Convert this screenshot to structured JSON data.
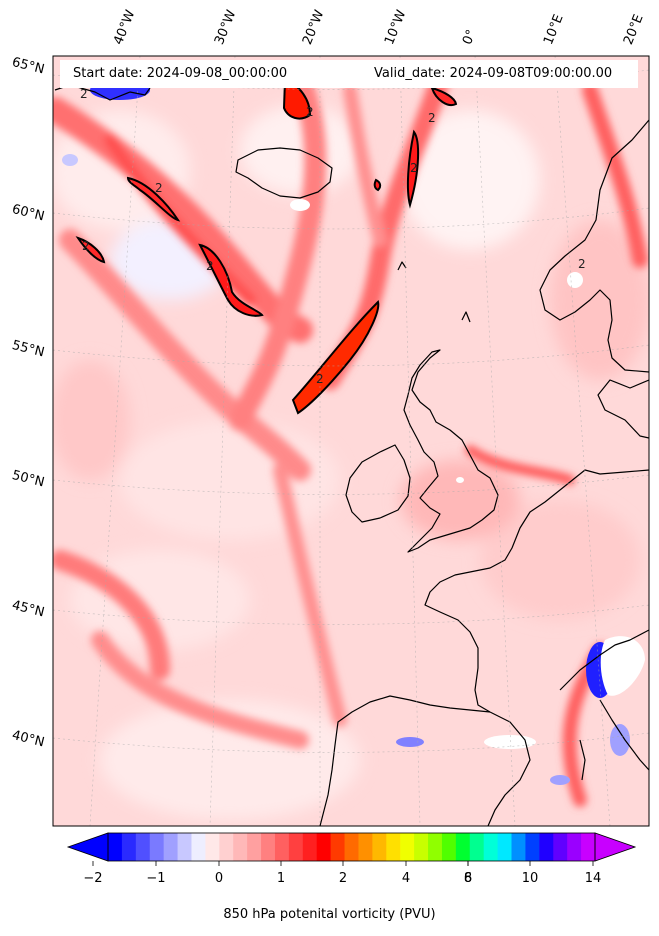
{
  "header": {
    "start_label": "Start date: 2024-09-08_00:00:00",
    "valid_label": "Valid_date: 2024-09-08T09:00:00.00"
  },
  "axes": {
    "lon_labels": [
      "40°W",
      "30°W",
      "20°W",
      "10°W",
      "0°",
      "10°E",
      "20°E"
    ],
    "lat_labels": [
      "65°N",
      "60°N",
      "55°N",
      "50°N",
      "45°N",
      "40°N"
    ]
  },
  "contour_label": "2",
  "colorbar": {
    "title": "850 hPa potenital vorticity (PVU)",
    "tick_labels": [
      "−2",
      "−1",
      "0",
      "1",
      "2",
      "4",
      "6",
      "8",
      "10",
      "14"
    ],
    "colors": [
      "#0000ff",
      "#2a2aff",
      "#5050ff",
      "#7a7aff",
      "#a0a0ff",
      "#c8c8ff",
      "#eeeeff",
      "#ffe8e8",
      "#ffd0d0",
      "#ffb8b8",
      "#ffa0a0",
      "#ff8080",
      "#ff6060",
      "#ff4040",
      "#ff2020",
      "#ff0000",
      "#ff3a00",
      "#ff6a00",
      "#ff9000",
      "#ffb800",
      "#ffe000",
      "#f0ff00",
      "#c8ff00",
      "#90ff00",
      "#50ff00",
      "#00ff30",
      "#00ff90",
      "#00ffd8",
      "#00e8ff",
      "#0090ff",
      "#0040ff",
      "#2000ff",
      "#6000ff",
      "#9a00ff",
      "#c800ff"
    ]
  }
}
